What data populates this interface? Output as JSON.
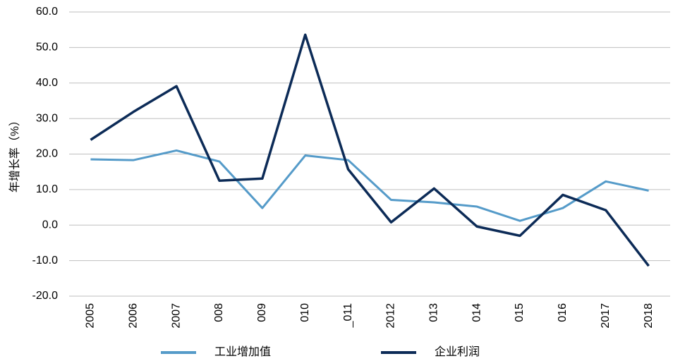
{
  "chart_data": {
    "type": "line",
    "y_label": "年增长率（%）",
    "categories": [
      "2005",
      "2006",
      "2007",
      "008",
      "009",
      "010",
      "_011",
      "2012",
      "013",
      "014",
      "015",
      "016",
      "2017",
      "2018"
    ],
    "series": [
      {
        "name": "工业增加值",
        "color": "#559bc9",
        "values": [
          18.5,
          18.3,
          21.0,
          17.9,
          4.8,
          19.6,
          18.3,
          7.1,
          6.4,
          5.2,
          1.2,
          4.8,
          12.3,
          9.7
        ]
      },
      {
        "name": "企业利润",
        "color": "#0c2b57",
        "values": [
          24.0,
          31.9,
          39.1,
          12.5,
          13.1,
          53.6,
          15.7,
          0.8,
          10.3,
          -0.4,
          -3.0,
          8.5,
          4.2,
          -11.5
        ]
      }
    ],
    "ylim": [
      -20,
      60
    ],
    "yticks": [
      {
        "value": -20,
        "label": "-20.0"
      },
      {
        "value": -10,
        "label": "-10.0"
      },
      {
        "value": 0,
        "label": "0.0"
      },
      {
        "value": 10,
        "label": "10.0"
      },
      {
        "value": 20,
        "label": "20.0"
      },
      {
        "value": 30,
        "label": "30.0"
      },
      {
        "value": 40,
        "label": "40.0"
      },
      {
        "value": 50,
        "label": "50.0"
      },
      {
        "value": 60,
        "label": "60.0"
      }
    ],
    "grid": true,
    "legend": "bottom"
  }
}
